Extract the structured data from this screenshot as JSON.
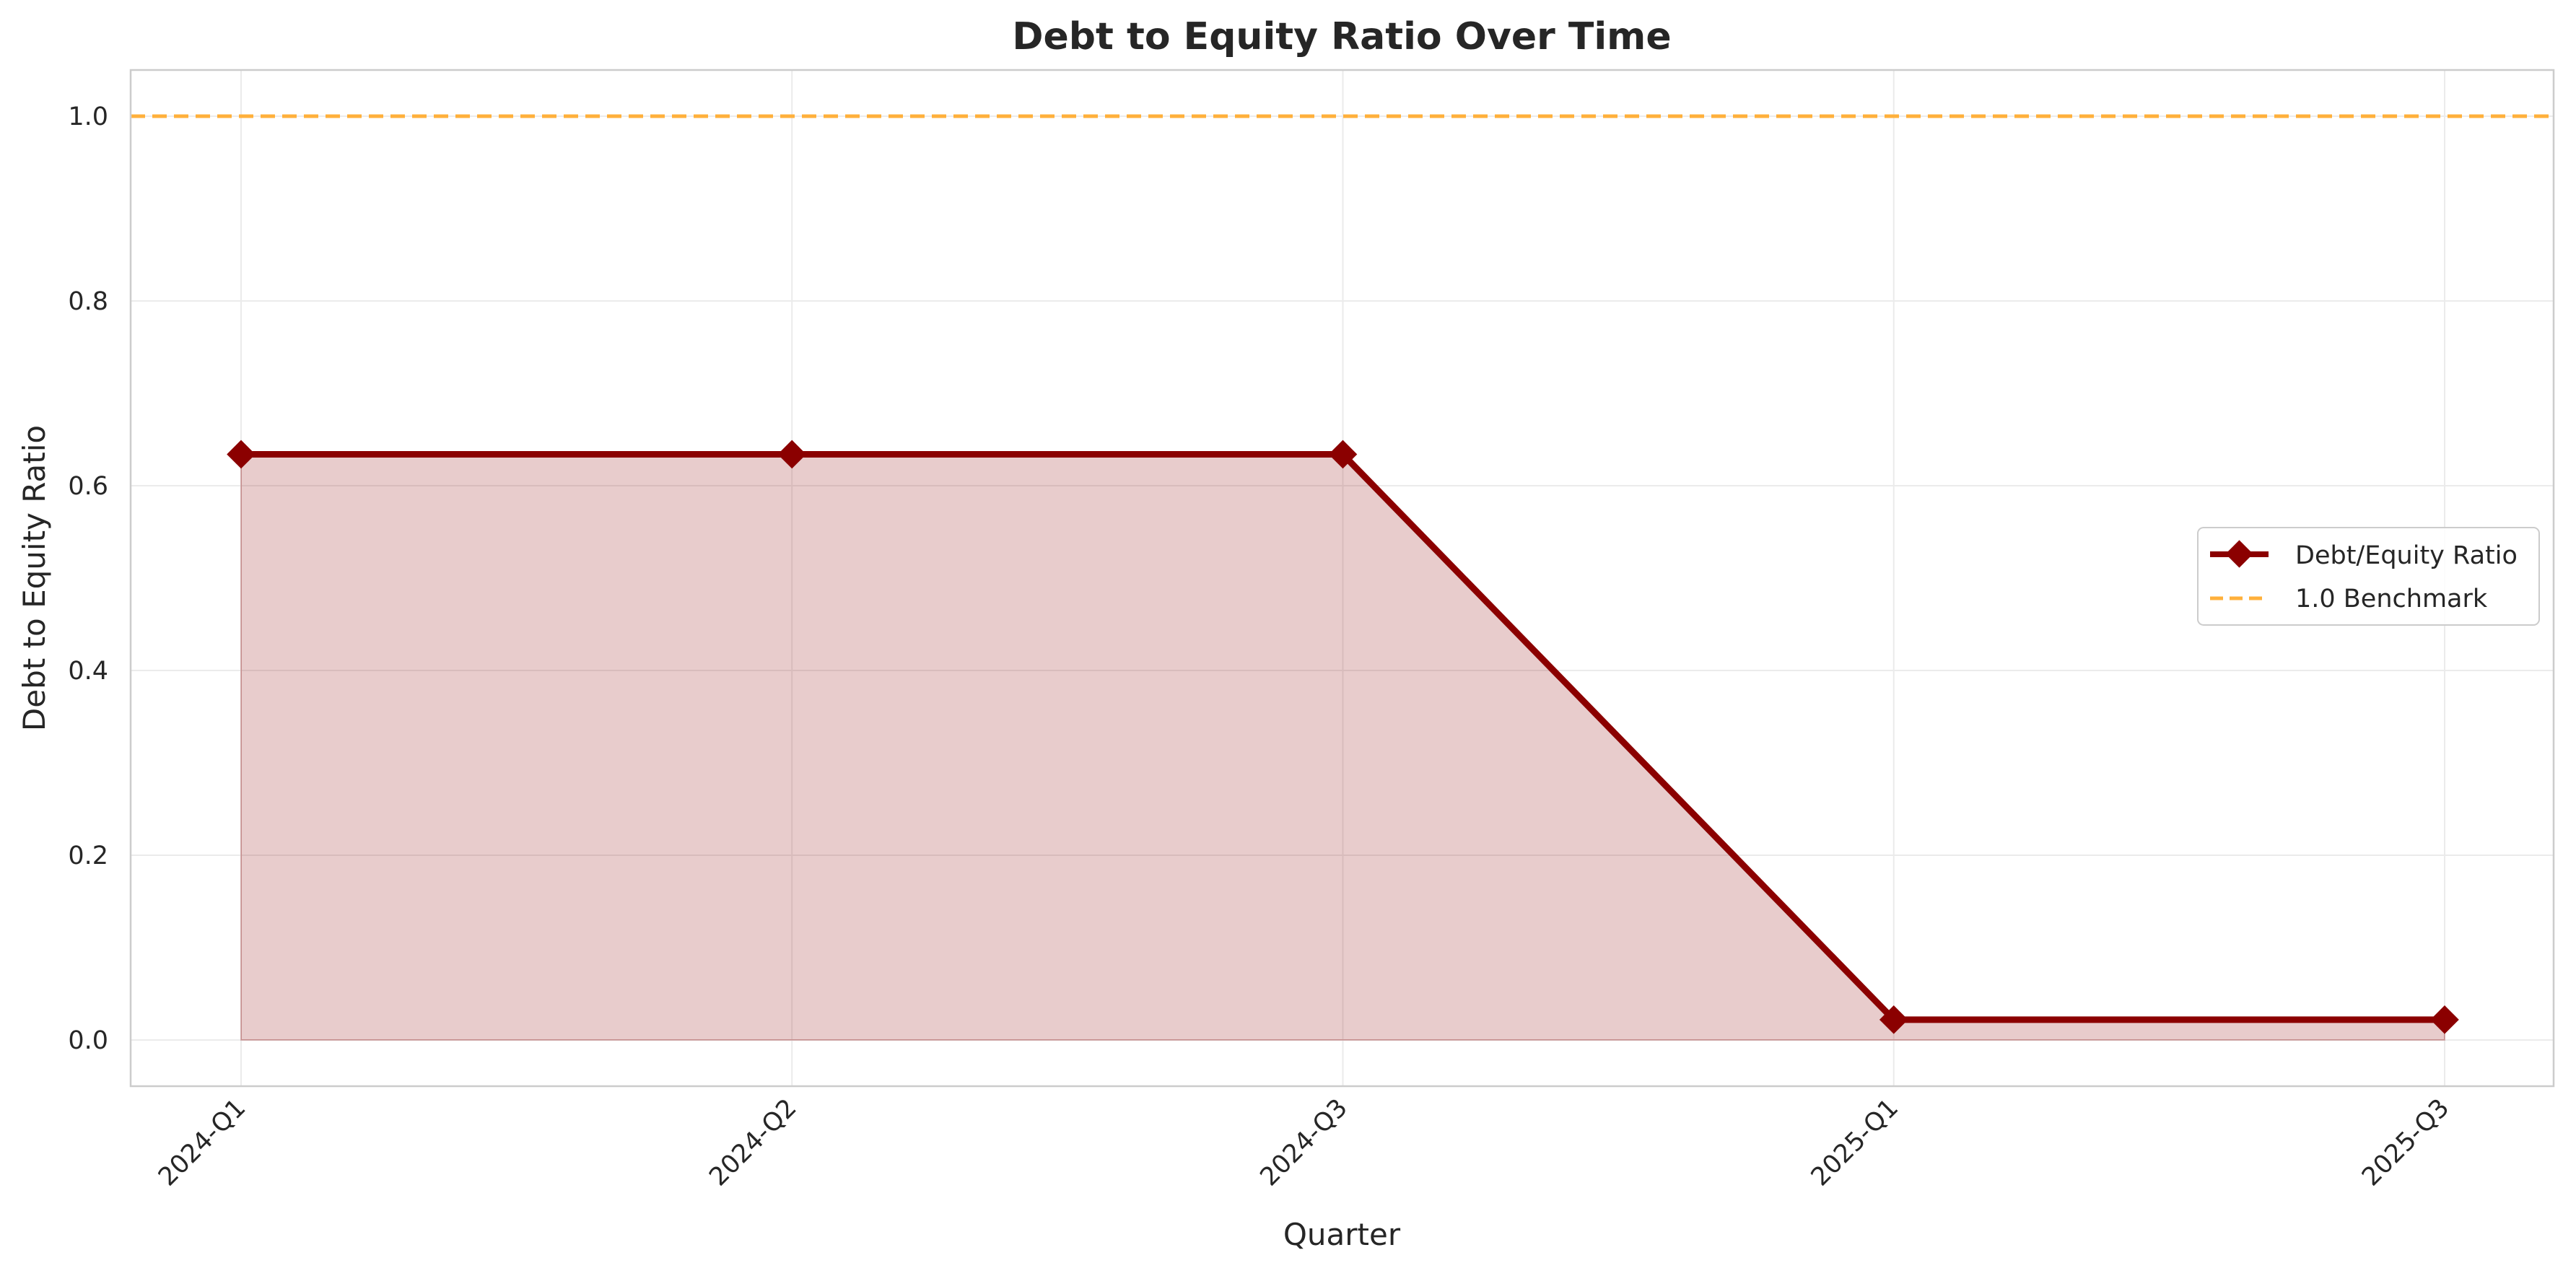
{
  "chart_data": {
    "type": "area",
    "title": "Debt to Equity Ratio Over Time",
    "xlabel": "Quarter",
    "ylabel": "Debt to Equity Ratio",
    "categories": [
      "2024-Q1",
      "2024-Q2",
      "2024-Q3",
      "2025-Q1",
      "2025-Q3"
    ],
    "series": [
      {
        "name": "Debt/Equity Ratio",
        "values": [
          0.634,
          0.634,
          0.634,
          0.022,
          0.022
        ],
        "color": "#8b0000",
        "marker": "diamond",
        "fill": true
      }
    ],
    "reference_lines": [
      {
        "name": "1.0 Benchmark",
        "y": 1.0,
        "color": "#ffb03b",
        "style": "dashed"
      }
    ],
    "ylim": [
      -0.05,
      1.05
    ],
    "yticks": [
      0.0,
      0.2,
      0.4,
      0.6,
      0.8,
      1.0
    ],
    "ytick_labels": [
      "0.0",
      "0.2",
      "0.4",
      "0.6",
      "0.8",
      "1.0"
    ],
    "grid": true,
    "legend_position": "center-right"
  }
}
